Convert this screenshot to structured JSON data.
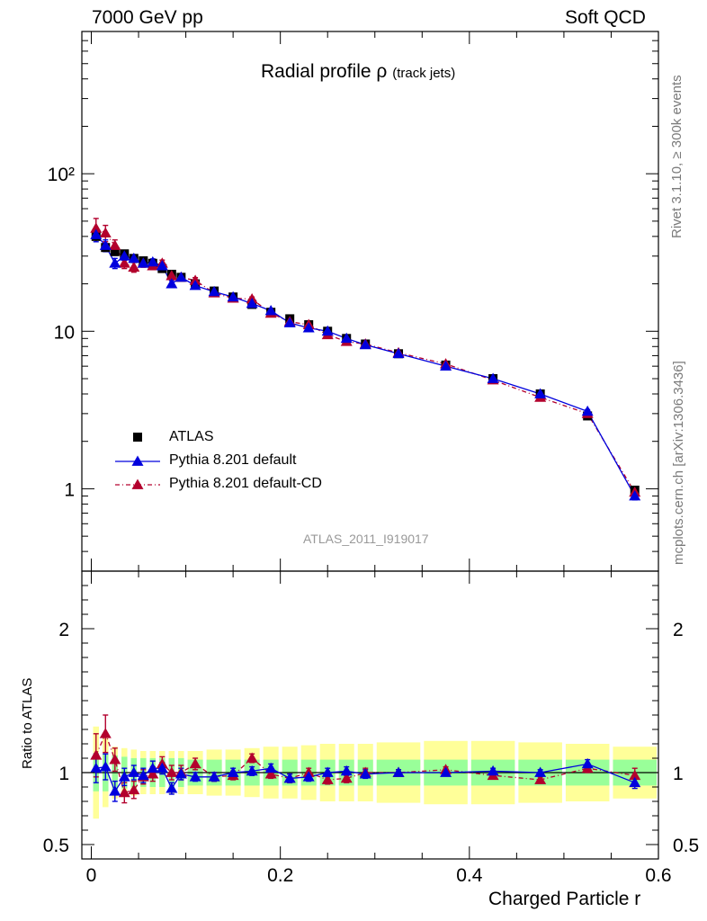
{
  "header": {
    "energy": "7000 GeV pp",
    "category": "Soft QCD"
  },
  "side_labels": {
    "rivet": "Rivet 3.1.10, ≥ 300k events",
    "source": "mcplots.cern.ch [arXiv:1306.3436]"
  },
  "analysis_id": "ATLAS_2011_I919017",
  "colors": {
    "data": "#000000",
    "default": "#0000dd",
    "default_cd": "#b3002d",
    "band_inner": "#99ff99",
    "band_outer": "#ffff99"
  },
  "chart_data": [
    {
      "type": "scatter",
      "title_main": "Radial profile ρ",
      "title_sub": "(track jets)",
      "yscale": "log",
      "xlim": [
        -0.01,
        0.6
      ],
      "ylim": [
        0.3,
        800
      ],
      "ytick_labels": [
        "10²",
        "10",
        "1"
      ],
      "ytick_values": [
        100,
        10,
        1
      ],
      "legend_position": "lower-left",
      "x": [
        0.005,
        0.015,
        0.025,
        0.035,
        0.045,
        0.055,
        0.065,
        0.075,
        0.085,
        0.095,
        0.11,
        0.13,
        0.15,
        0.17,
        0.19,
        0.21,
        0.23,
        0.25,
        0.27,
        0.29,
        0.325,
        0.375,
        0.425,
        0.475,
        0.525,
        0.575
      ],
      "series": [
        {
          "name": "ATLAS",
          "values": [
            40,
            34,
            32,
            31,
            29,
            28,
            27,
            25,
            23,
            22,
            20,
            18,
            16.5,
            14.8,
            13.2,
            12,
            11,
            10,
            9,
            8.3,
            7.2,
            6.1,
            5,
            4,
            2.9,
            0.98
          ]
        },
        {
          "name": "Pythia 8.201 default",
          "values": [
            41,
            35,
            27,
            30,
            29,
            27,
            27.5,
            26,
            20,
            22,
            19.5,
            17.8,
            16.5,
            15,
            13.5,
            11.3,
            10.5,
            10,
            9,
            8.2,
            7.2,
            6,
            5,
            4,
            3.1,
            0.9
          ],
          "errors": [
            4,
            3,
            2,
            1.8,
            1.6,
            1.4,
            1.3,
            1.2,
            1,
            1,
            0.8,
            0.6,
            0.5,
            0.5,
            0.4,
            0.35,
            0.3,
            0.3,
            0.25,
            0.2,
            0.18,
            0.15,
            0.12,
            0.1,
            0.08,
            0.05
          ]
        },
        {
          "name": "Pythia 8.201 default-CD",
          "values": [
            45,
            42,
            35,
            27,
            25.5,
            27,
            26,
            27,
            22.5,
            22,
            21,
            17.5,
            16.2,
            16,
            13,
            11.5,
            11,
            9.5,
            8.6,
            8.3,
            7.3,
            6.2,
            4.9,
            3.8,
            3,
            0.95
          ],
          "errors": [
            7,
            5,
            3,
            2,
            1.8,
            1.5,
            1.4,
            1.3,
            1.2,
            1.1,
            0.9,
            0.6,
            0.5,
            0.5,
            0.4,
            0.35,
            0.3,
            0.3,
            0.25,
            0.2,
            0.18,
            0.15,
            0.12,
            0.1,
            0.08,
            0.05
          ]
        }
      ]
    },
    {
      "type": "scatter",
      "ylabel": "Ratio to ATLAS",
      "xlabel": "Charged Particle r",
      "xlim": [
        -0.01,
        0.6
      ],
      "ylim": [
        0.4,
        2.4
      ],
      "ytick_labels": [
        "2",
        "1",
        "0.5"
      ],
      "ytick_values": [
        2,
        1,
        0.5
      ],
      "xtick_labels": [
        "0",
        "0.2",
        "0.4",
        "0.6"
      ],
      "xtick_values": [
        0,
        0.2,
        0.4,
        0.6
      ],
      "x": [
        0.005,
        0.015,
        0.025,
        0.035,
        0.045,
        0.055,
        0.065,
        0.075,
        0.085,
        0.095,
        0.11,
        0.13,
        0.15,
        0.17,
        0.19,
        0.21,
        0.23,
        0.25,
        0.27,
        0.29,
        0.325,
        0.375,
        0.425,
        0.475,
        0.525,
        0.575
      ],
      "bin_edges": [
        0,
        0.01,
        0.02,
        0.03,
        0.04,
        0.05,
        0.06,
        0.07,
        0.08,
        0.09,
        0.1,
        0.12,
        0.14,
        0.16,
        0.18,
        0.2,
        0.22,
        0.24,
        0.26,
        0.28,
        0.3,
        0.35,
        0.4,
        0.45,
        0.5,
        0.55,
        0.6
      ],
      "band_inner_halfwidth": [
        0.13,
        0.13,
        0.12,
        0.11,
        0.1,
        0.1,
        0.1,
        0.1,
        0.1,
        0.1,
        0.09,
        0.09,
        0.09,
        0.09,
        0.09,
        0.09,
        0.09,
        0.09,
        0.09,
        0.09,
        0.09,
        0.09,
        0.09,
        0.09,
        0.09,
        0.09
      ],
      "band_outer_halfwidth": [
        0.32,
        0.24,
        0.18,
        0.17,
        0.16,
        0.15,
        0.15,
        0.15,
        0.15,
        0.15,
        0.15,
        0.16,
        0.16,
        0.17,
        0.18,
        0.18,
        0.19,
        0.2,
        0.2,
        0.2,
        0.21,
        0.22,
        0.22,
        0.21,
        0.2,
        0.18
      ],
      "series": [
        {
          "name": "Pythia 8.201 default",
          "values": [
            1.03,
            1.04,
            0.87,
            0.97,
            1.0,
            0.98,
            1.03,
            1.03,
            0.89,
            0.99,
            0.97,
            0.97,
            1.0,
            1.01,
            1.03,
            0.96,
            0.97,
            1.0,
            1.01,
            0.99,
            1.0,
            1.0,
            1.01,
            1.0,
            1.06,
            0.93
          ],
          "errors": [
            0.1,
            0.09,
            0.07,
            0.06,
            0.05,
            0.05,
            0.05,
            0.04,
            0.04,
            0.04,
            0.03,
            0.03,
            0.03,
            0.03,
            0.03,
            0.03,
            0.03,
            0.03,
            0.03,
            0.03,
            0.02,
            0.02,
            0.02,
            0.02,
            0.03,
            0.04
          ]
        },
        {
          "name": "Pythia 8.201 default-CD",
          "values": [
            1.12,
            1.27,
            1.09,
            0.86,
            0.88,
            0.97,
            0.99,
            1.06,
            1.0,
            1.0,
            1.06,
            0.97,
            0.98,
            1.1,
            0.99,
            0.96,
            1.0,
            0.95,
            0.96,
            1.0,
            1.0,
            1.02,
            0.98,
            0.95,
            1.03,
            0.98
          ],
          "errors": [
            0.15,
            0.13,
            0.08,
            0.07,
            0.06,
            0.05,
            0.05,
            0.05,
            0.05,
            0.05,
            0.04,
            0.03,
            0.03,
            0.03,
            0.03,
            0.03,
            0.03,
            0.03,
            0.03,
            0.03,
            0.02,
            0.02,
            0.02,
            0.02,
            0.03,
            0.05
          ]
        }
      ]
    }
  ]
}
